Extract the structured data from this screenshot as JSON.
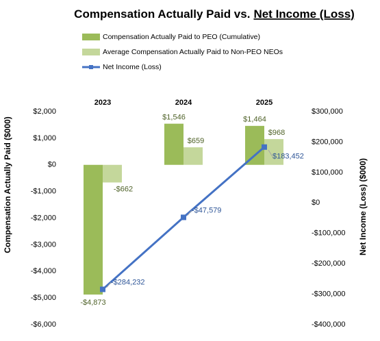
{
  "chart_data": {
    "type": "bar_line",
    "title": [
      "Compensation Actually Paid vs.",
      "Net Income (Loss)"
    ],
    "categories": [
      "2023",
      "2024",
      "2025"
    ],
    "series": [
      {
        "name": "Compensation Actually Paid to PEO (Cumulative)",
        "color": "#9bbb59",
        "kind": "bar",
        "values": [
          -4873,
          1546,
          1464
        ],
        "value_labels": [
          "-$4,873",
          "$1,546",
          "$1,464"
        ]
      },
      {
        "name": "Average Compensation Actually Paid to Non-PEO NEOs",
        "color": "#c4d79b",
        "kind": "bar",
        "values": [
          -662,
          659,
          968
        ],
        "value_labels": [
          "-$662",
          "$659",
          "$968"
        ]
      },
      {
        "name": "Net Income (Loss)",
        "color": "#4472c4",
        "kind": "line",
        "axis": "y2",
        "values": [
          -284232,
          -47579,
          183452
        ],
        "value_labels": [
          "-$284,232",
          "-$47,579",
          "$183,452"
        ]
      }
    ],
    "ylabel": "Compensation Actually Paid ($000)",
    "y2label": "Net Income (Loss) ($000)",
    "ylim": [
      -6000,
      2000
    ],
    "yticks": [
      {
        "value": -6000,
        "label": "-$6,000"
      },
      {
        "value": -5000,
        "label": "-$5,000"
      },
      {
        "value": -4000,
        "label": "-$4,000"
      },
      {
        "value": -3000,
        "label": "-$3,000"
      },
      {
        "value": -2000,
        "label": "-$2,000"
      },
      {
        "value": -1000,
        "label": "-$1,000"
      },
      {
        "value": 0,
        "label": "$0"
      },
      {
        "value": 1000,
        "label": "$1,000"
      },
      {
        "value": 2000,
        "label": "$2,000"
      }
    ],
    "y2lim": [
      -400000,
      300000
    ],
    "y2ticks": [
      {
        "value": -400000,
        "label": "-$400,000"
      },
      {
        "value": -300000,
        "label": "-$300,000"
      },
      {
        "value": -200000,
        "label": "-$200,000"
      },
      {
        "value": -100000,
        "label": "-$100,000"
      },
      {
        "value": 0,
        "label": "$0"
      },
      {
        "value": 100000,
        "label": "$100,000"
      },
      {
        "value": 200000,
        "label": "$200,000"
      },
      {
        "value": 300000,
        "label": "$300,000"
      }
    ],
    "grid": false
  }
}
